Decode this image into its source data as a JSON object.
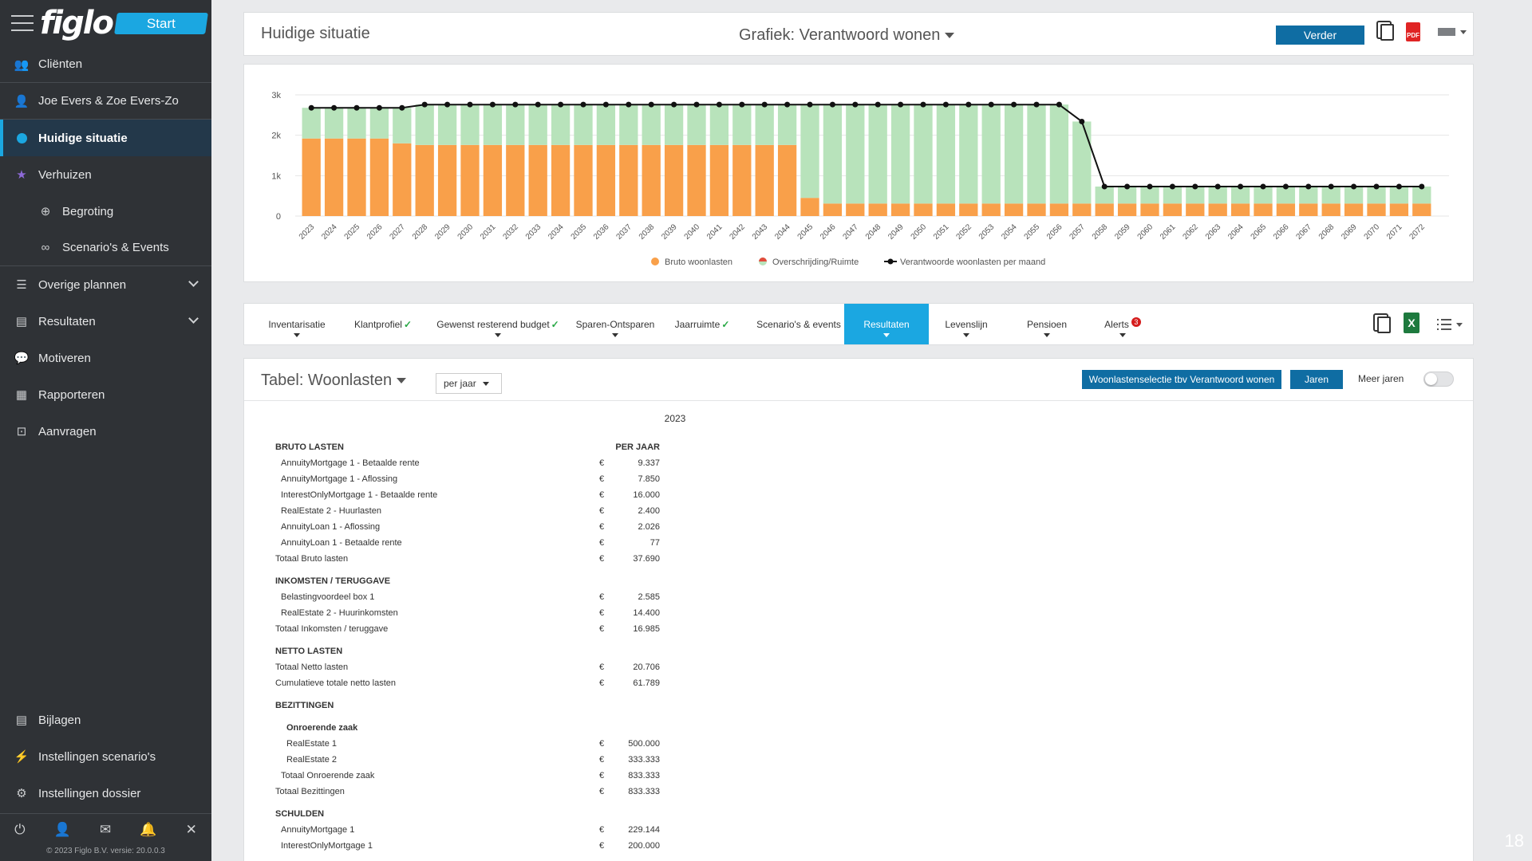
{
  "app": {
    "logo": "figlo",
    "start_label": "Start"
  },
  "sidebar": {
    "items": [
      {
        "label": "Cliënten",
        "icon": "users-icon",
        "glyph": "👥"
      },
      {
        "label": "Joe Evers & Zoe Evers-Zo",
        "icon": "user-icon",
        "glyph": "👤"
      },
      {
        "label": "Huidige situatie",
        "icon": "dot-icon",
        "glyph": ""
      },
      {
        "label": "Verhuizen",
        "icon": "star-icon",
        "glyph": "★"
      },
      {
        "label": "Begroting",
        "icon": "target-icon",
        "glyph": "⊕"
      },
      {
        "label": "Scenario's & Events",
        "icon": "glasses-icon",
        "glyph": "∞"
      },
      {
        "label": "Overige plannen",
        "icon": "list-icon",
        "glyph": "☰"
      },
      {
        "label": "Resultaten",
        "icon": "chart-icon",
        "glyph": "▤"
      },
      {
        "label": "Motiveren",
        "icon": "speech-icon",
        "glyph": "💬"
      },
      {
        "label": "Rapporteren",
        "icon": "report-icon",
        "glyph": "▦"
      },
      {
        "label": "Aanvragen",
        "icon": "request-icon",
        "glyph": "⊡"
      }
    ],
    "bottom_items": [
      {
        "label": "Bijlagen",
        "icon": "attachment-icon",
        "glyph": "▤"
      },
      {
        "label": "Instellingen scenario's",
        "icon": "bolt-icon",
        "glyph": "⚡"
      },
      {
        "label": "Instellingen dossier",
        "icon": "settings-icon",
        "glyph": "⚙"
      }
    ],
    "footer_icons": [
      "⏻",
      "👤",
      "✉",
      "🔔",
      "✕"
    ],
    "copyright": "© 2023 Figlo B.V. versie: 20.0.0.3"
  },
  "header": {
    "title": "Huidige situatie",
    "chart_selector": "Grafiek: Verantwoord wonen",
    "verder_label": "Verder",
    "pdf_label": "PDF"
  },
  "chart_data": {
    "type": "bar",
    "categories": [
      "2023",
      "2024",
      "2025",
      "2026",
      "2027",
      "2028",
      "2029",
      "2030",
      "2031",
      "2032",
      "2033",
      "2034",
      "2035",
      "2036",
      "2037",
      "2038",
      "2039",
      "2040",
      "2041",
      "2042",
      "2043",
      "2044",
      "2045",
      "2046",
      "2047",
      "2048",
      "2049",
      "2050",
      "2051",
      "2052",
      "2053",
      "2054",
      "2055",
      "2056",
      "2057",
      "2058",
      "2059",
      "2060",
      "2061",
      "2062",
      "2063",
      "2064",
      "2065",
      "2066",
      "2067",
      "2068",
      "2069",
      "2070",
      "2071",
      "2072"
    ],
    "series": [
      {
        "name": "Bruto woonlasten",
        "kind": "stacked-bar",
        "color": "#f9a04a",
        "values": [
          1920,
          1920,
          1920,
          1920,
          1800,
          1760,
          1760,
          1760,
          1760,
          1760,
          1760,
          1760,
          1760,
          1760,
          1760,
          1760,
          1760,
          1760,
          1760,
          1760,
          1760,
          1760,
          450,
          310,
          310,
          310,
          310,
          310,
          310,
          310,
          310,
          310,
          310,
          310,
          310,
          310,
          310,
          310,
          310,
          310,
          310,
          310,
          310,
          310,
          310,
          310,
          310,
          310,
          310,
          310
        ]
      },
      {
        "name": "Overschrijding/Ruimte",
        "kind": "stacked-bar",
        "color": "#b8e3bb",
        "values": [
          760,
          760,
          760,
          760,
          880,
          1000,
          1000,
          1000,
          1000,
          1000,
          1000,
          1000,
          1000,
          1000,
          1000,
          1000,
          1000,
          1000,
          1000,
          1000,
          1000,
          1000,
          2310,
          2450,
          2450,
          2450,
          2450,
          2450,
          2450,
          2450,
          2450,
          2450,
          2450,
          2450,
          2030,
          420,
          420,
          420,
          420,
          420,
          420,
          420,
          420,
          420,
          420,
          420,
          420,
          420,
          420,
          420
        ]
      },
      {
        "name": "Verantwoorde woonlasten per maand",
        "kind": "line",
        "color": "#111111",
        "values": [
          2680,
          2680,
          2680,
          2680,
          2680,
          2760,
          2760,
          2760,
          2760,
          2760,
          2760,
          2760,
          2760,
          2760,
          2760,
          2760,
          2760,
          2760,
          2760,
          2760,
          2760,
          2760,
          2760,
          2760,
          2760,
          2760,
          2760,
          2760,
          2760,
          2760,
          2760,
          2760,
          2760,
          2760,
          2340,
          730,
          730,
          730,
          730,
          730,
          730,
          730,
          730,
          730,
          730,
          730,
          730,
          730,
          730,
          730
        ]
      }
    ],
    "y_ticks": [
      "0",
      "1k",
      "2k",
      "3k"
    ],
    "ylim": [
      0,
      3000
    ],
    "grid": true,
    "legend_position": "bottom"
  },
  "tabs": [
    {
      "label": "Inventarisatie",
      "check": false,
      "caret": true,
      "active": false
    },
    {
      "label": "Klantprofiel",
      "check": true,
      "caret": false,
      "active": false
    },
    {
      "label": "Gewenst resterend budget",
      "check": true,
      "caret": true,
      "active": false
    },
    {
      "label": "Sparen-Ontsparen",
      "check": false,
      "caret": true,
      "active": false
    },
    {
      "label": "Jaarruimte",
      "check": true,
      "caret": false,
      "active": false
    },
    {
      "label": "Scenario's & events",
      "check": false,
      "caret": false,
      "active": false
    },
    {
      "label": "Resultaten",
      "check": false,
      "caret": true,
      "active": true
    },
    {
      "label": "Levenslijn",
      "check": false,
      "caret": true,
      "active": false
    },
    {
      "label": "Pensioen",
      "check": false,
      "caret": true,
      "active": false
    },
    {
      "label": "Alerts",
      "check": false,
      "caret": true,
      "active": false,
      "badge": "3"
    }
  ],
  "check_mark": "✓",
  "xls_label": "X",
  "table": {
    "title": "Tabel: Woonlasten",
    "period_select": "per jaar",
    "woon_button": "Woonlastenselectie tbv Verantwoord wonen",
    "jaren_button": "Jaren",
    "meer_jaren": "Meer jaren",
    "year": "2023",
    "column_header": "PER JAAR",
    "currency": "€",
    "rows": [
      {
        "type": "head",
        "label": "BRUTO LASTEN",
        "colhead": true
      },
      {
        "type": "ind1",
        "label": "AnnuityMortgage 1 - Betaalde rente",
        "value": "9.337"
      },
      {
        "type": "ind1",
        "label": "AnnuityMortgage 1 - Aflossing",
        "value": "7.850"
      },
      {
        "type": "ind1",
        "label": "InterestOnlyMortgage 1 - Betaalde rente",
        "value": "16.000"
      },
      {
        "type": "ind1",
        "label": "RealEstate 2 - Huurlasten",
        "value": "2.400"
      },
      {
        "type": "ind1",
        "label": "AnnuityLoan 1 - Aflossing",
        "value": "2.026"
      },
      {
        "type": "ind1",
        "label": "AnnuityLoan 1 - Betaalde rente",
        "value": "77"
      },
      {
        "type": "plain",
        "label": "Totaal Bruto lasten",
        "value": "37.690"
      },
      {
        "type": "head",
        "label": "INKOMSTEN / TERUGGAVE"
      },
      {
        "type": "ind1",
        "label": "Belastingvoordeel box 1",
        "value": "2.585"
      },
      {
        "type": "ind1",
        "label": "RealEstate 2 - Huurinkomsten",
        "value": "14.400"
      },
      {
        "type": "plain",
        "label": "Totaal Inkomsten / teruggave",
        "value": "16.985"
      },
      {
        "type": "head",
        "label": "NETTO LASTEN"
      },
      {
        "type": "plain",
        "label": "Totaal Netto lasten",
        "value": "20.706"
      },
      {
        "type": "plain",
        "label": "Cumulatieve totale netto lasten",
        "value": "61.789"
      },
      {
        "type": "head",
        "label": "BEZITTINGEN"
      },
      {
        "type": "subhead",
        "label": "Onroerende zaak"
      },
      {
        "type": "ind2",
        "label": "RealEstate 1",
        "value": "500.000"
      },
      {
        "type": "ind2",
        "label": "RealEstate 2",
        "value": "333.333"
      },
      {
        "type": "ind1",
        "label": "Totaal Onroerende zaak",
        "value": "833.333"
      },
      {
        "type": "plain",
        "label": "Totaal Bezittingen",
        "value": "833.333"
      },
      {
        "type": "head",
        "label": "SCHULDEN"
      },
      {
        "type": "ind1",
        "label": "AnnuityMortgage 1",
        "value": "229.144"
      },
      {
        "type": "ind1",
        "label": "InterestOnlyMortgage 1",
        "value": "200.000"
      }
    ]
  },
  "page_number": "18"
}
